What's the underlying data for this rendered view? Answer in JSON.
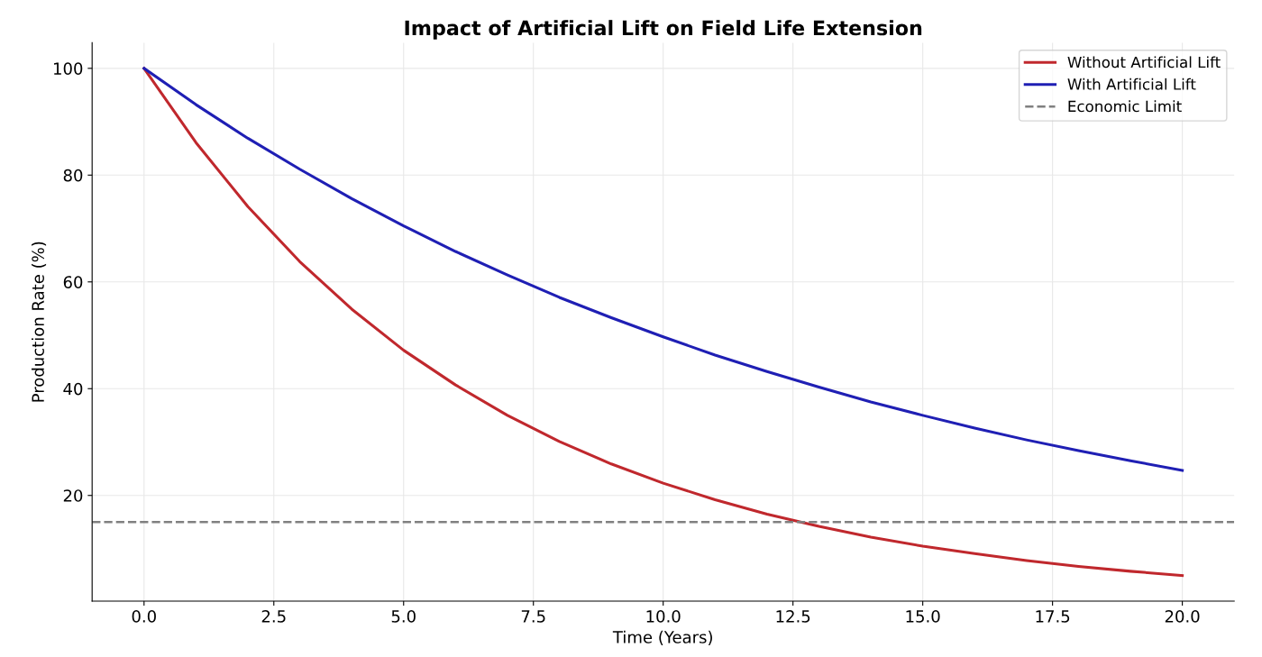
{
  "chart_data": {
    "type": "line",
    "title": "Impact of Artificial Lift on Field Life Extension",
    "xlabel": "Time (Years)",
    "ylabel": "Production Rate (%)",
    "x": [
      0,
      1,
      2,
      3,
      4,
      5,
      6,
      7,
      8,
      9,
      10,
      11,
      12,
      13,
      14,
      15,
      16,
      17,
      18,
      19,
      20
    ],
    "series": [
      {
        "name": "Without Artificial Lift",
        "color": "#c0282d",
        "values": [
          100,
          86.1,
          74.1,
          63.8,
          54.9,
          47.2,
          40.7,
          35.0,
          30.1,
          25.9,
          22.3,
          19.2,
          16.5,
          14.2,
          12.2,
          10.5,
          9.1,
          7.8,
          6.7,
          5.8,
          5.0
        ]
      },
      {
        "name": "With Artificial Lift",
        "color": "#1f1fb4",
        "values": [
          100,
          93.2,
          86.9,
          81.1,
          75.6,
          70.5,
          65.7,
          61.3,
          57.1,
          53.3,
          49.7,
          46.3,
          43.2,
          40.3,
          37.5,
          35.0,
          32.6,
          30.4,
          28.4,
          26.5,
          24.7
        ]
      }
    ],
    "ref_lines": [
      {
        "axis": "y",
        "value": 15,
        "label": "Economic Limit",
        "color": "#808080",
        "line_style": "dashed"
      }
    ],
    "xlim": [
      -1,
      21
    ],
    "ylim": [
      0.2,
      104.8
    ],
    "xticks": [
      {
        "value": 0,
        "label": "0.0"
      },
      {
        "value": 2.5,
        "label": "2.5"
      },
      {
        "value": 5,
        "label": "5.0"
      },
      {
        "value": 7.5,
        "label": "7.5"
      },
      {
        "value": 10,
        "label": "10.0"
      },
      {
        "value": 12.5,
        "label": "12.5"
      },
      {
        "value": 15,
        "label": "15.0"
      },
      {
        "value": 17.5,
        "label": "17.5"
      },
      {
        "value": 20,
        "label": "20.0"
      }
    ],
    "yticks": [
      20,
      40,
      60,
      80,
      100
    ],
    "grid": true,
    "legend": "top right",
    "line_style": "solid",
    "marker": "none"
  }
}
